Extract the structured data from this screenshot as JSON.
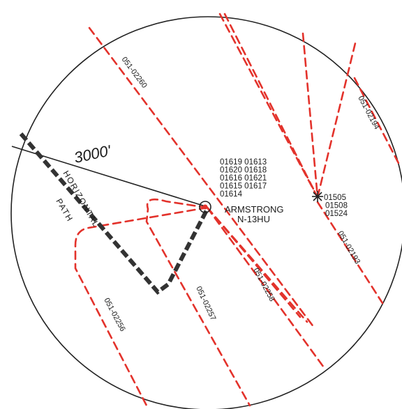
{
  "distance_label": "3000'",
  "horizontal_path_label": [
    "HORIZONTAL",
    "PATH"
  ],
  "main_well": {
    "name": "ARMSTRONG",
    "id": "N-13HU"
  },
  "cluster_a": {
    "rows": [
      "01619 01613",
      "01620 01618",
      "01616 01621",
      "01615 01617",
      "01614"
    ]
  },
  "cluster_b": {
    "rows": [
      "01505",
      "01508",
      "01524"
    ]
  },
  "well_labels": {
    "w02260": "051-02260",
    "w02194": "051-02194",
    "w02193": "051-02193",
    "w02258": "051-02258",
    "w02257": "051-02257",
    "w02256": "051-02256"
  },
  "colors": {
    "red": "#e3322b",
    "black": "#333333"
  },
  "icons": {
    "main_well": "well-circle-icon",
    "cluster": "star-burst-icon"
  }
}
